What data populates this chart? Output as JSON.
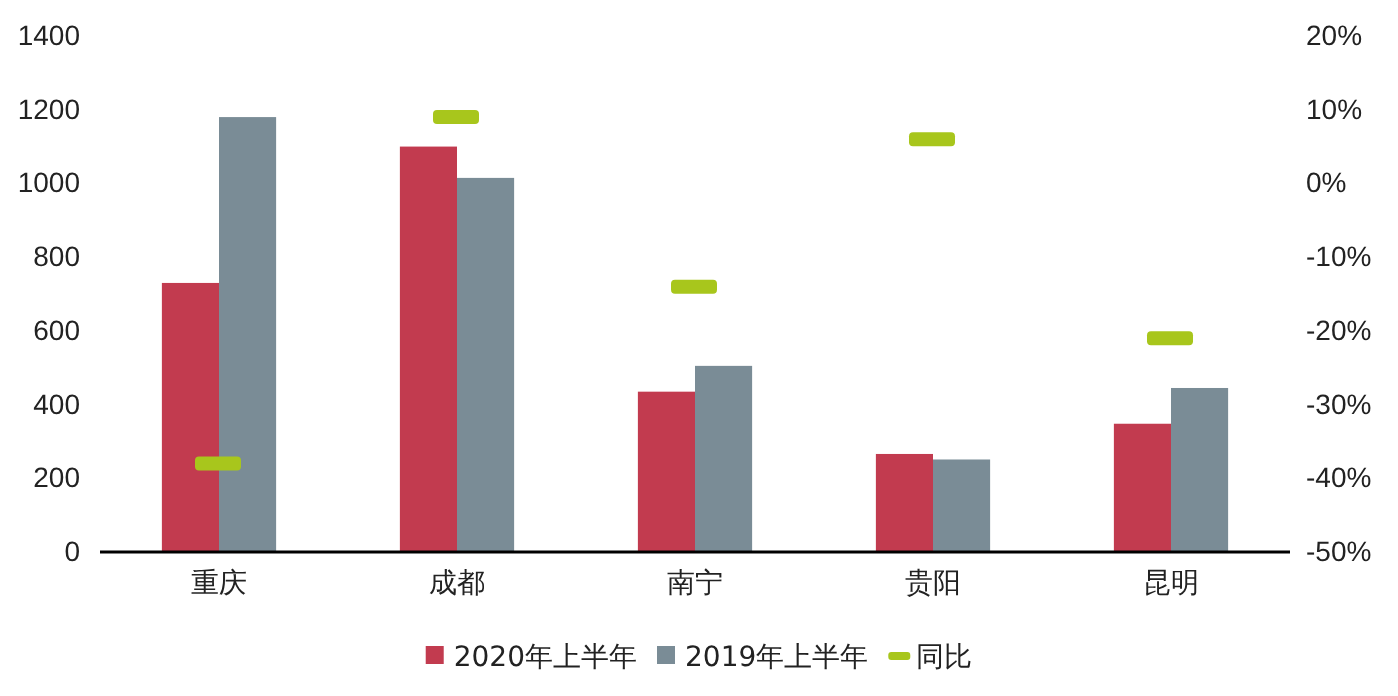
{
  "chart_data": {
    "type": "bar",
    "categories": [
      "重庆",
      "成都",
      "南宁",
      "贵阳",
      "昆明"
    ],
    "series": [
      {
        "name": "2020年上半年",
        "color": "#c23b4f",
        "values": [
          730,
          1100,
          435,
          266,
          348
        ]
      },
      {
        "name": "2019年上半年",
        "color": "#7a8c96",
        "values": [
          1180,
          1015,
          505,
          251,
          445
        ]
      },
      {
        "name": "同比",
        "type": "scatter",
        "axis": "y2",
        "color": "#a8c61c",
        "values": [
          -38,
          9,
          -14,
          6,
          -21
        ]
      }
    ],
    "ylim": [
      0,
      1400
    ],
    "yticks": [
      0,
      200,
      400,
      600,
      800,
      1000,
      1200,
      1400
    ],
    "y2lim": [
      -50,
      20
    ],
    "y2ticks": [
      {
        "value": -50,
        "label": "-50%"
      },
      {
        "value": -40,
        "label": "-40%"
      },
      {
        "value": -30,
        "label": "-30%"
      },
      {
        "value": -20,
        "label": "-20%"
      },
      {
        "value": -10,
        "label": "-10%"
      },
      {
        "value": 0,
        "label": "0%"
      },
      {
        "value": 10,
        "label": "10%"
      },
      {
        "value": 20,
        "label": "20%"
      }
    ],
    "legend": "bottom"
  }
}
